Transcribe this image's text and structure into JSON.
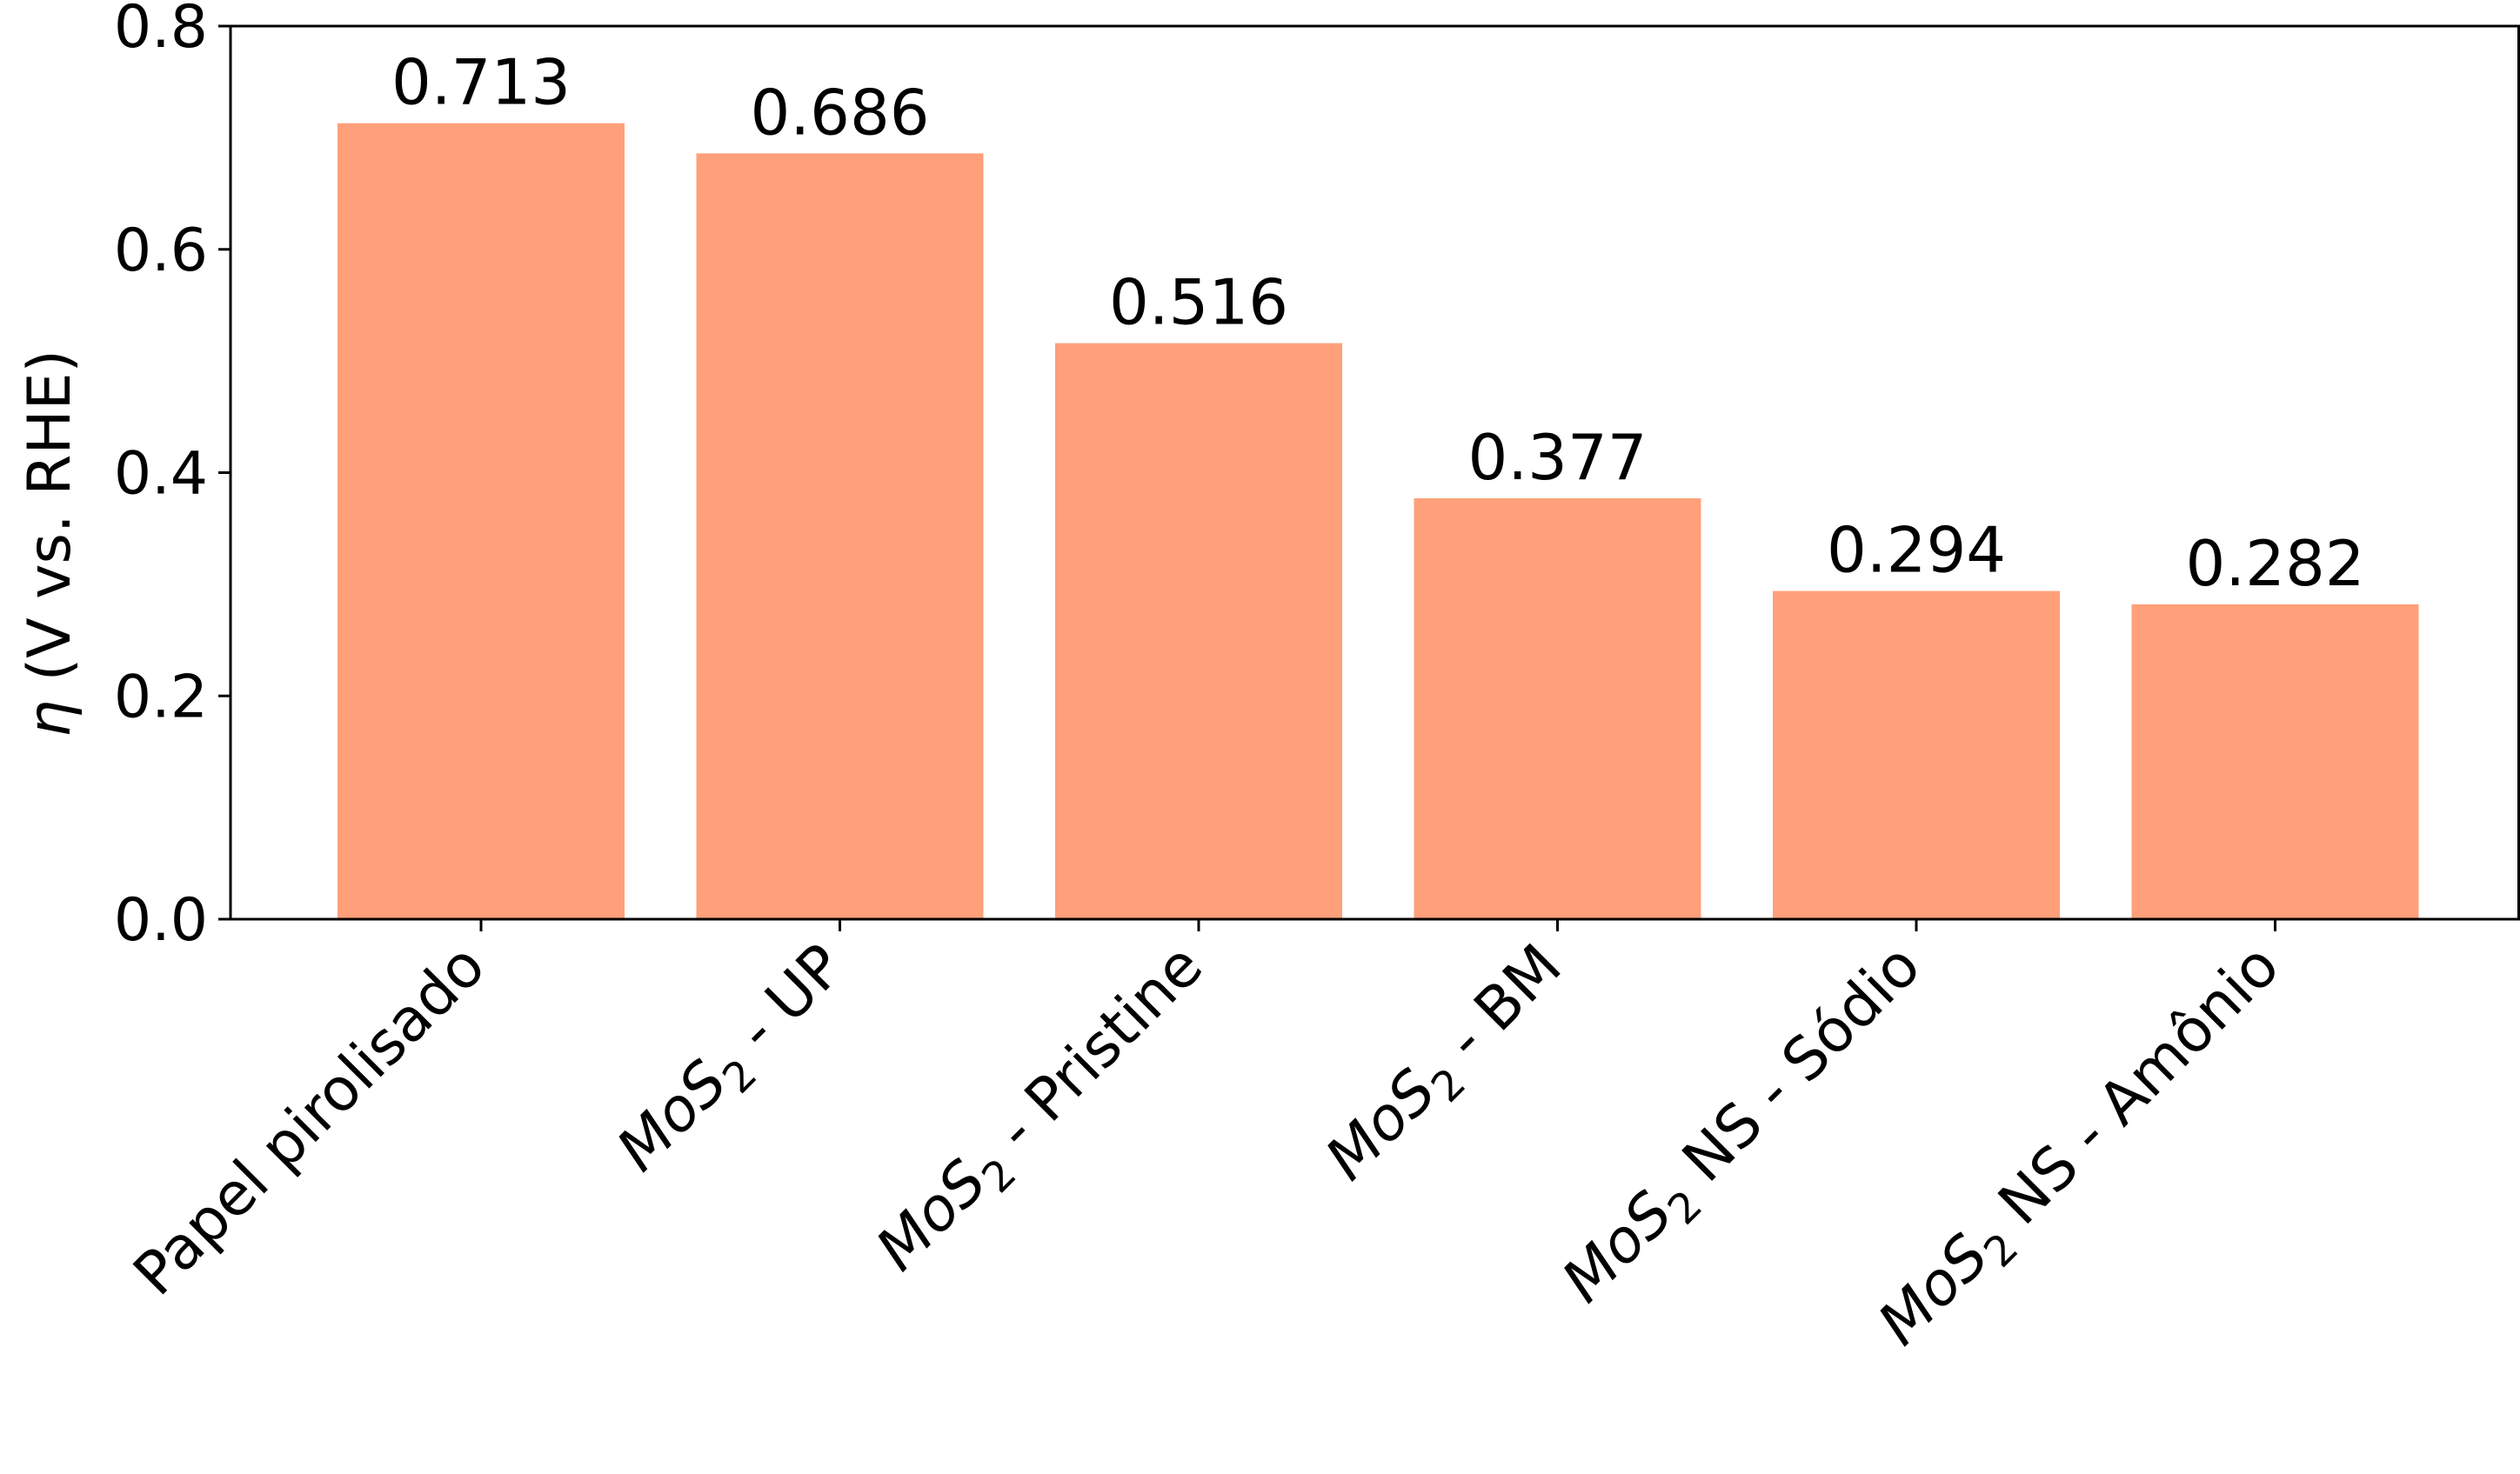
{
  "chart_data": {
    "type": "bar",
    "categories": [
      {
        "main": "Papel pirolisado",
        "mol": "",
        "sub": "",
        "rest": ""
      },
      {
        "main": "",
        "mol": "MoS",
        "sub": "2",
        "rest": " - UP"
      },
      {
        "main": "",
        "mol": "MoS",
        "sub": "2",
        "rest": " - Pristine"
      },
      {
        "main": "",
        "mol": "MoS",
        "sub": "2",
        "rest": " - BM"
      },
      {
        "main": "",
        "mol": "MoS",
        "sub": "2",
        "rest": " NS - Sódio"
      },
      {
        "main": "",
        "mol": "MoS",
        "sub": "2",
        "rest": " NS - Amônio"
      }
    ],
    "values": [
      0.713,
      0.686,
      0.516,
      0.377,
      0.294,
      0.282
    ],
    "value_labels": [
      "0.713",
      "0.686",
      "0.516",
      "0.377",
      "0.294",
      "0.282"
    ],
    "ylabel_symbol": "η",
    "ylabel_text": " (V vs. RHE)",
    "xlabel": "",
    "title": "",
    "ylim": [
      0,
      0.8
    ],
    "yticks": [
      "0.0",
      "0.2",
      "0.4",
      "0.6",
      "0.8"
    ],
    "bar_color": "#FFA07A",
    "grid": false,
    "legend": false
  }
}
